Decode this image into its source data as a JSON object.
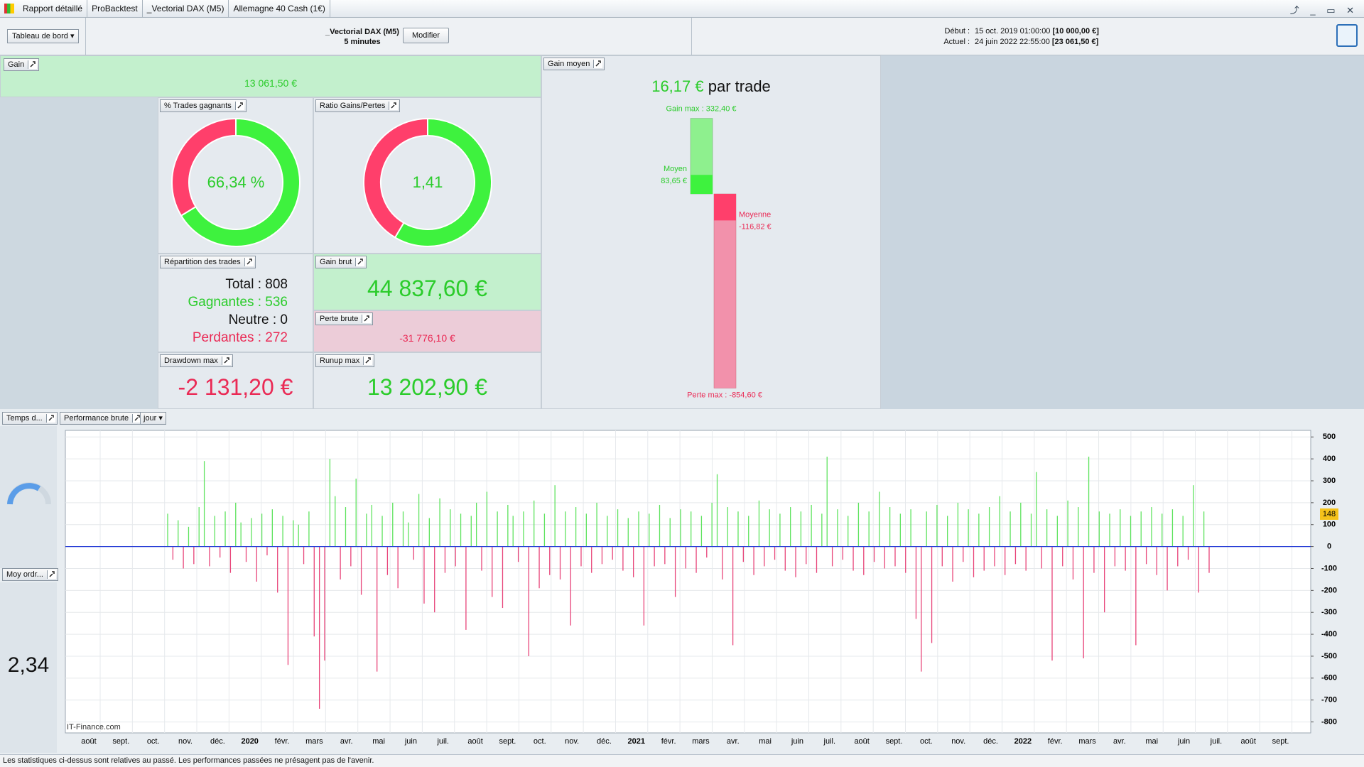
{
  "header": {
    "tabs": [
      "Rapport détaillé",
      "ProBacktest",
      "_Vectorial DAX (M5)",
      "Allemagne 40 Cash (1€)"
    ],
    "dashboard": "Tableau de bord",
    "system": "_Vectorial DAX (M5)",
    "timeframe": "5 minutes",
    "edit": "Modifier",
    "start_label": "Début :",
    "start_date": "15 oct. 2019 01:00:00",
    "start_capital": "[10 000,00 €]",
    "current_label": "Actuel :",
    "current_date": "24 juin 2022 22:55:00",
    "current_capital": "[23 061,50 €]"
  },
  "gain": {
    "title": "Gain",
    "value": "13 061,50 €"
  },
  "win_rate": {
    "title": "% Trades gagnants",
    "value": 66.34,
    "label": "66,34 %"
  },
  "ratio": {
    "title": "Ratio Gains/Pertes",
    "label": "1,41"
  },
  "breakdown": {
    "title": "Répartition des trades",
    "rows": [
      "Total : 808",
      "Gagnantes : 536",
      "Neutre : 0",
      "Perdantes : 272"
    ]
  },
  "gross_gain": {
    "title": "Gain brut",
    "value": 44837.6,
    "label": "44 837,60 €"
  },
  "gross_loss": {
    "title": "Perte brute",
    "value": -31776.1,
    "label": "-31 776,10 €"
  },
  "drawdown": {
    "title": "Drawdown max",
    "value": "-2 131,20 €"
  },
  "runup": {
    "title": "Runup max",
    "value": "13 202,90 €"
  },
  "avg_gain": {
    "title": "Gain moyen",
    "value": "16,17 €",
    "unit": "par trade",
    "gain_max": {
      "value": 332.4,
      "label": "Gain max : 332,40 €"
    },
    "avg_win": {
      "value": 83.65,
      "name": "Moyen",
      "label": "83,65 €"
    },
    "avg_loss": {
      "value": -116.82,
      "name": "Moyenne",
      "label": "-116,82 €"
    },
    "loss_max": {
      "value": -854.6,
      "label": "Perte max : -854,60 €"
    }
  },
  "side": {
    "duration": "Temps d...",
    "avg_orders": "Moy ordr...",
    "avg_orders_value": "2,34"
  },
  "chart_data": {
    "type": "bar",
    "title": "Performance brute",
    "period": "jour",
    "grid": true,
    "colors": {
      "positive": "#5fe35f",
      "negative": "#e8457a",
      "zero": "#2a3fd6"
    },
    "ylim": [
      -850,
      530
    ],
    "yticks": [
      500,
      400,
      300,
      200,
      100,
      0,
      -100,
      -200,
      -300,
      -400,
      -500,
      -600,
      -700,
      -800
    ],
    "xticks": [
      "août",
      "sept.",
      "oct.",
      "nov.",
      "déc.",
      "2020",
      "févr.",
      "mars",
      "avr.",
      "mai",
      "juin",
      "juil.",
      "août",
      "sept.",
      "oct.",
      "nov.",
      "déc.",
      "2021",
      "févr.",
      "mars",
      "avr.",
      "mai",
      "juin",
      "juil.",
      "août",
      "sept.",
      "oct.",
      "nov.",
      "déc.",
      "2022",
      "févr.",
      "mars",
      "avr.",
      "mai",
      "juin",
      "juil.",
      "août",
      "sept."
    ],
    "values": [
      150,
      -60,
      120,
      -100,
      90,
      -80,
      180,
      390,
      -90,
      140,
      -50,
      160,
      -120,
      200,
      110,
      -70,
      130,
      -160,
      150,
      -40,
      170,
      -210,
      140,
      -540,
      120,
      100,
      -80,
      160,
      -410,
      -740,
      -520,
      400,
      230,
      -150,
      180,
      -90,
      310,
      -220,
      150,
      190,
      -570,
      140,
      -130,
      200,
      -190,
      160,
      110,
      -60,
      240,
      -260,
      130,
      -300,
      220,
      -120,
      170,
      -90,
      150,
      -380,
      140,
      200,
      -110,
      250,
      -230,
      160,
      -280,
      190,
      140,
      -70,
      160,
      -500,
      210,
      -190,
      150,
      -130,
      280,
      -150,
      160,
      -360,
      180,
      -90,
      150,
      -120,
      200,
      -80,
      140,
      -60,
      170,
      -110,
      130,
      -140,
      160,
      -360,
      150,
      -90,
      190,
      -80,
      130,
      -230,
      170,
      -100,
      160,
      -120,
      140,
      -50,
      200,
      330,
      -150,
      180,
      -450,
      160,
      -70,
      140,
      -130,
      210,
      -90,
      170,
      -60,
      150,
      -110,
      180,
      -140,
      160,
      -80,
      190,
      -120,
      150,
      410,
      -90,
      170,
      -60,
      140,
      -110,
      200,
      -130,
      160,
      -70,
      250,
      -100,
      180,
      -90,
      150,
      -120,
      170,
      -330,
      -570,
      160,
      -440,
      190,
      -90,
      140,
      -160,
      200,
      -70,
      170,
      -140,
      150,
      -110,
      180,
      -90,
      230,
      -130,
      160,
      -80,
      200,
      -110,
      150,
      340,
      -100,
      170,
      -520,
      140,
      -90,
      210,
      -150,
      180,
      -510,
      410,
      -120,
      160,
      -300,
      150,
      -90,
      170,
      -110,
      140,
      -450,
      160,
      -80,
      180,
      -130,
      150,
      -200,
      170,
      -90,
      140,
      -60,
      280,
      -210,
      160,
      -120
    ],
    "current_value": 148,
    "watermark": "IT-Finance.com"
  },
  "footer": "Les statistiques ci-dessus sont relatives au passé. Les performances passées ne présagent pas de l'avenir."
}
